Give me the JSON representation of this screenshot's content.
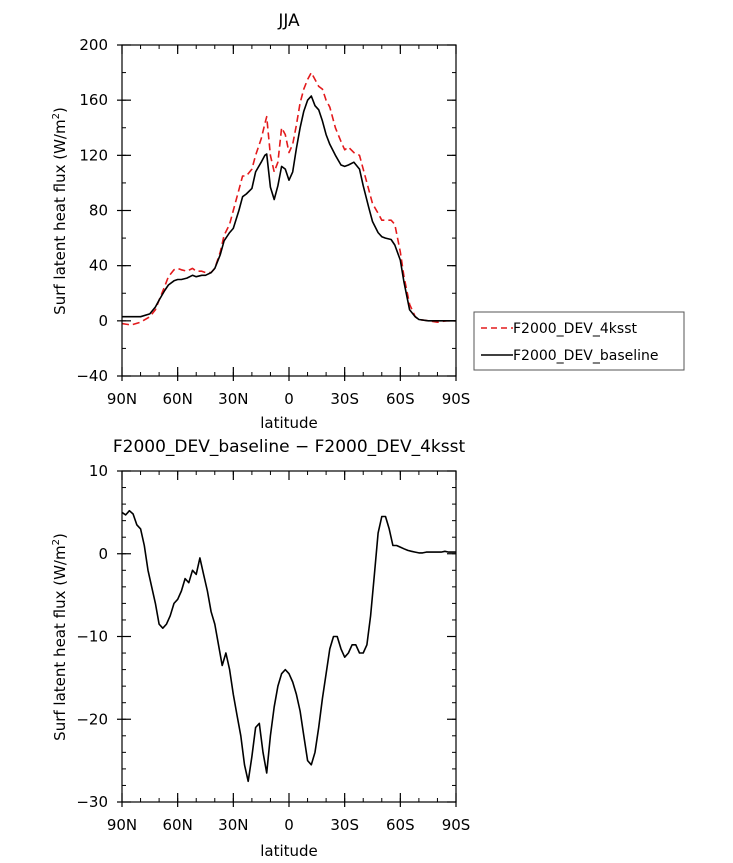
{
  "chart_data": [
    {
      "type": "line",
      "title": "JJA",
      "xlabel": "latitude",
      "ylabel": "Surf latent heat flux (W/m²)",
      "ylabel_main": "Surf latent heat flux (W/m",
      "ylabel_sup": "2",
      "ylabel_close": ")",
      "xlim": [
        90,
        -90
      ],
      "ylim": [
        -40,
        200
      ],
      "xticks": [
        90,
        60,
        30,
        0,
        -30,
        -60,
        -90
      ],
      "xtick_labels": [
        "90N",
        "60N",
        "30N",
        "0",
        "30S",
        "60S",
        "90S"
      ],
      "yticks": [
        -40,
        0,
        40,
        80,
        120,
        160,
        200
      ],
      "ytick_labels": [
        "−40",
        "0",
        "40",
        "80",
        "120",
        "160",
        "200"
      ],
      "legend_position": "right",
      "series": [
        {
          "name": "F2000_DEV_4ksst",
          "color": "#e31a1c",
          "dash": true,
          "x": [
            90,
            85,
            80,
            75,
            72,
            70,
            67,
            65,
            62,
            60,
            58,
            55,
            52,
            50,
            47,
            45,
            42,
            40,
            37,
            35,
            32,
            30,
            27,
            25,
            23,
            20,
            18,
            15,
            13,
            12,
            10,
            8,
            6,
            4,
            2,
            0,
            -2,
            -4,
            -6,
            -8,
            -10,
            -12,
            -14,
            -16,
            -18,
            -20,
            -22,
            -25,
            -28,
            -30,
            -32,
            -35,
            -38,
            -40,
            -43,
            -45,
            -48,
            -50,
            -52,
            -55,
            -57,
            -60,
            -62,
            -65,
            -68,
            -70,
            -75,
            -80,
            -85,
            -90
          ],
          "y": [
            -2,
            -3,
            -1,
            3,
            8,
            15,
            25,
            32,
            37,
            38,
            37,
            36,
            38,
            36,
            36,
            35,
            35,
            38,
            50,
            62,
            70,
            80,
            95,
            105,
            105,
            110,
            120,
            132,
            143,
            148,
            120,
            108,
            115,
            140,
            135,
            122,
            128,
            142,
            158,
            168,
            175,
            180,
            175,
            170,
            168,
            160,
            155,
            140,
            130,
            124,
            126,
            122,
            120,
            110,
            95,
            85,
            78,
            73,
            73,
            73,
            70,
            50,
            32,
            12,
            3,
            1,
            0,
            -1,
            0,
            0
          ]
        },
        {
          "name": "F2000_DEV_baseline",
          "color": "#000000",
          "dash": false,
          "x": [
            90,
            85,
            80,
            75,
            72,
            70,
            67,
            65,
            62,
            60,
            58,
            55,
            52,
            50,
            47,
            45,
            42,
            40,
            37,
            35,
            32,
            30,
            27,
            25,
            23,
            20,
            18,
            15,
            13,
            12,
            10,
            8,
            6,
            4,
            2,
            0,
            -2,
            -4,
            -6,
            -8,
            -10,
            -12,
            -14,
            -16,
            -18,
            -20,
            -22,
            -25,
            -28,
            -30,
            -32,
            -35,
            -38,
            -40,
            -43,
            -45,
            -48,
            -50,
            -52,
            -55,
            -57,
            -60,
            -62,
            -65,
            -68,
            -70,
            -75,
            -80,
            -85,
            -90
          ],
          "y": [
            3,
            3,
            3,
            5,
            10,
            15,
            22,
            26,
            29,
            30,
            30,
            31,
            33,
            32,
            33,
            33,
            35,
            38,
            48,
            58,
            64,
            67,
            80,
            90,
            92,
            96,
            108,
            115,
            120,
            121,
            97,
            88,
            98,
            112,
            110,
            102,
            108,
            125,
            140,
            152,
            160,
            163,
            156,
            153,
            145,
            135,
            128,
            120,
            113,
            112,
            113,
            115,
            110,
            98,
            82,
            72,
            64,
            61,
            60,
            59,
            55,
            44,
            28,
            8,
            3,
            1,
            0,
            0,
            0,
            0
          ]
        }
      ]
    },
    {
      "type": "line",
      "title": "F2000_DEV_baseline − F2000_DEV_4ksst",
      "xlabel": "latitude",
      "ylabel": "Surf latent heat flux (W/m²)",
      "ylabel_main": "Surf latent heat flux (W/m",
      "ylabel_sup": "2",
      "ylabel_close": ")",
      "xlim": [
        90,
        -90
      ],
      "ylim": [
        -30,
        10
      ],
      "xticks": [
        90,
        60,
        30,
        0,
        -30,
        -60,
        -90
      ],
      "xtick_labels": [
        "90N",
        "60N",
        "30N",
        "0",
        "30S",
        "60S",
        "90S"
      ],
      "yticks": [
        -30,
        -20,
        -10,
        0,
        10
      ],
      "ytick_labels": [
        "−30",
        "−20",
        "−10",
        "0",
        "10"
      ],
      "series": [
        {
          "color": "#000000",
          "dash": false,
          "x": [
            90,
            88,
            86,
            84,
            82,
            80,
            78,
            76,
            74,
            72,
            70,
            68,
            66,
            64,
            62,
            60,
            58,
            56,
            54,
            52,
            50,
            48,
            46,
            44,
            42,
            40,
            38,
            36,
            34,
            32,
            30,
            28,
            26,
            24,
            22,
            20,
            18,
            16,
            14,
            12,
            10,
            8,
            6,
            4,
            2,
            0,
            -2,
            -4,
            -6,
            -8,
            -10,
            -12,
            -14,
            -16,
            -18,
            -20,
            -22,
            -24,
            -26,
            -28,
            -30,
            -32,
            -34,
            -36,
            -38,
            -40,
            -42,
            -44,
            -46,
            -48,
            -50,
            -52,
            -54,
            -56,
            -58,
            -60,
            -62,
            -64,
            -66,
            -68,
            -70,
            -72,
            -74,
            -76,
            -78,
            -80,
            -82,
            -84,
            -86,
            -88,
            -90
          ],
          "y": [
            5,
            4.7,
            5.2,
            4.8,
            3.5,
            3,
            1,
            -2,
            -4,
            -6,
            -8.5,
            -9,
            -8.5,
            -7.5,
            -6,
            -5.5,
            -4.5,
            -3,
            -3.5,
            -2,
            -2.5,
            -0.5,
            -2.5,
            -4.5,
            -7,
            -8.5,
            -11,
            -13.5,
            -12,
            -14,
            -17,
            -19.5,
            -22,
            -25.5,
            -27.5,
            -24.5,
            -21,
            -20.5,
            -24,
            -26.5,
            -22,
            -18.5,
            -16,
            -14.5,
            -14,
            -14.5,
            -15.5,
            -17,
            -19,
            -22,
            -25,
            -25.5,
            -24,
            -21,
            -17.5,
            -14.5,
            -11.5,
            -10,
            -10,
            -11.5,
            -12.5,
            -12,
            -11,
            -11,
            -12,
            -12,
            -11,
            -7.5,
            -2.5,
            2.5,
            4.5,
            4.5,
            3,
            1,
            1,
            0.8,
            0.6,
            0.4,
            0.3,
            0.2,
            0.1,
            0.1,
            0.2,
            0.2,
            0.2,
            0.2,
            0.2,
            0.3,
            0.2,
            0.2,
            0.2
          ]
        }
      ]
    }
  ]
}
